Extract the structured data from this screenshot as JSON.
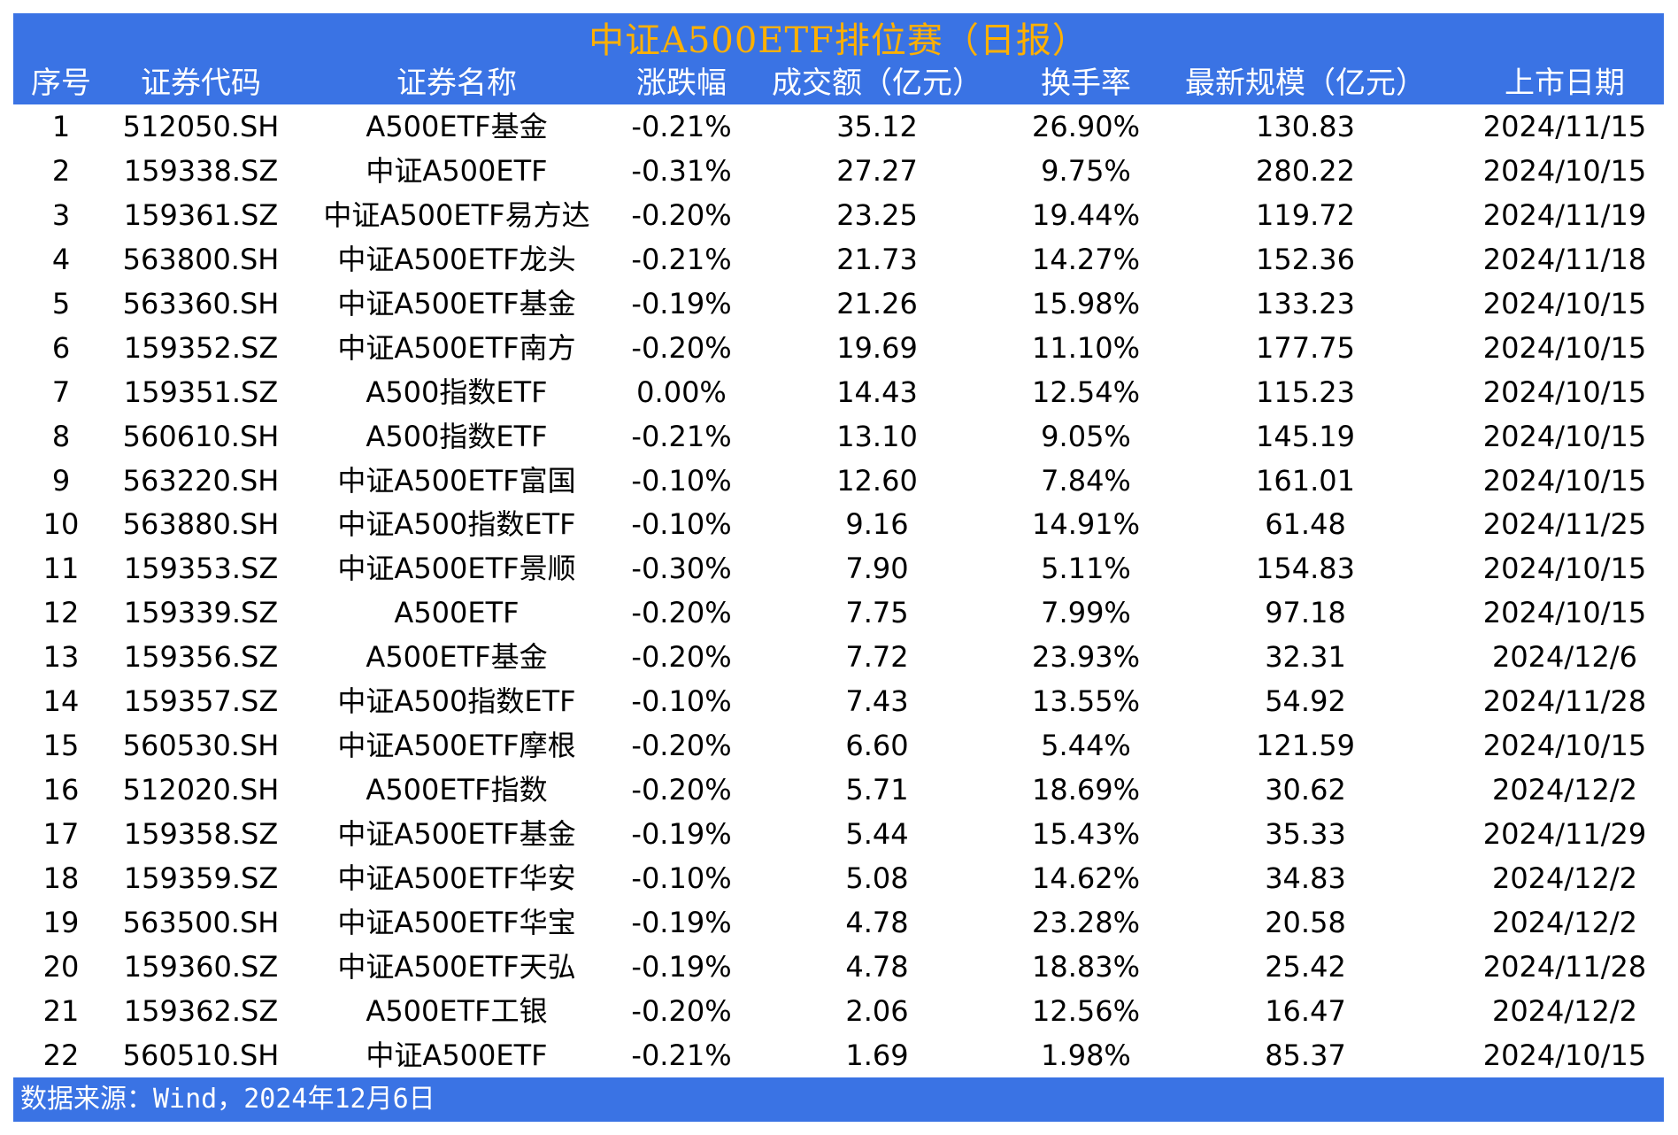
{
  "title": "中证A500ETF排位赛（日报）",
  "colors": {
    "header_bg": "#3a73e4",
    "title": "#ffb000",
    "header_text": "#ffffff"
  },
  "columns": [
    "序号",
    "证券代码",
    "证券名称",
    "涨跌幅",
    "成交额（亿元）",
    "换手率",
    "最新规模（亿元）",
    "上市日期"
  ],
  "rows": [
    [
      "1",
      "512050.SH",
      "A500ETF基金",
      "-0.21%",
      "35.12",
      "26.90%",
      "130.83",
      "2024/11/15"
    ],
    [
      "2",
      "159338.SZ",
      "中证A500ETF",
      "-0.31%",
      "27.27",
      "9.75%",
      "280.22",
      "2024/10/15"
    ],
    [
      "3",
      "159361.SZ",
      "中证A500ETF易方达",
      "-0.20%",
      "23.25",
      "19.44%",
      "119.72",
      "2024/11/19"
    ],
    [
      "4",
      "563800.SH",
      "中证A500ETF龙头",
      "-0.21%",
      "21.73",
      "14.27%",
      "152.36",
      "2024/11/18"
    ],
    [
      "5",
      "563360.SH",
      "中证A500ETF基金",
      "-0.19%",
      "21.26",
      "15.98%",
      "133.23",
      "2024/10/15"
    ],
    [
      "6",
      "159352.SZ",
      "中证A500ETF南方",
      "-0.20%",
      "19.69",
      "11.10%",
      "177.75",
      "2024/10/15"
    ],
    [
      "7",
      "159351.SZ",
      "A500指数ETF",
      "0.00%",
      "14.43",
      "12.54%",
      "115.23",
      "2024/10/15"
    ],
    [
      "8",
      "560610.SH",
      "A500指数ETF",
      "-0.21%",
      "13.10",
      "9.05%",
      "145.19",
      "2024/10/15"
    ],
    [
      "9",
      "563220.SH",
      "中证A500ETF富国",
      "-0.10%",
      "12.60",
      "7.84%",
      "161.01",
      "2024/10/15"
    ],
    [
      "10",
      "563880.SH",
      "中证A500指数ETF",
      "-0.10%",
      "9.16",
      "14.91%",
      "61.48",
      "2024/11/25"
    ],
    [
      "11",
      "159353.SZ",
      "中证A500ETF景顺",
      "-0.30%",
      "7.90",
      "5.11%",
      "154.83",
      "2024/10/15"
    ],
    [
      "12",
      "159339.SZ",
      "A500ETF",
      "-0.20%",
      "7.75",
      "7.99%",
      "97.18",
      "2024/10/15"
    ],
    [
      "13",
      "159356.SZ",
      "A500ETF基金",
      "-0.20%",
      "7.72",
      "23.93%",
      "32.31",
      "2024/12/6"
    ],
    [
      "14",
      "159357.SZ",
      "中证A500指数ETF",
      "-0.10%",
      "7.43",
      "13.55%",
      "54.92",
      "2024/11/28"
    ],
    [
      "15",
      "560530.SH",
      "中证A500ETF摩根",
      "-0.20%",
      "6.60",
      "5.44%",
      "121.59",
      "2024/10/15"
    ],
    [
      "16",
      "512020.SH",
      "A500ETF指数",
      "-0.20%",
      "5.71",
      "18.69%",
      "30.62",
      "2024/12/2"
    ],
    [
      "17",
      "159358.SZ",
      "中证A500ETF基金",
      "-0.19%",
      "5.44",
      "15.43%",
      "35.33",
      "2024/11/29"
    ],
    [
      "18",
      "159359.SZ",
      "中证A500ETF华安",
      "-0.10%",
      "5.08",
      "14.62%",
      "34.83",
      "2024/12/2"
    ],
    [
      "19",
      "563500.SH",
      "中证A500ETF华宝",
      "-0.19%",
      "4.78",
      "23.28%",
      "20.58",
      "2024/12/2"
    ],
    [
      "20",
      "159360.SZ",
      "中证A500ETF天弘",
      "-0.19%",
      "4.78",
      "18.83%",
      "25.42",
      "2024/11/28"
    ],
    [
      "21",
      "159362.SZ",
      "A500ETF工银",
      "-0.20%",
      "2.06",
      "12.56%",
      "16.47",
      "2024/12/2"
    ],
    [
      "22",
      "560510.SH",
      "中证A500ETF",
      "-0.21%",
      "1.69",
      "1.98%",
      "85.37",
      "2024/10/15"
    ]
  ],
  "footer": "数据来源：Wind，2024年12月6日"
}
